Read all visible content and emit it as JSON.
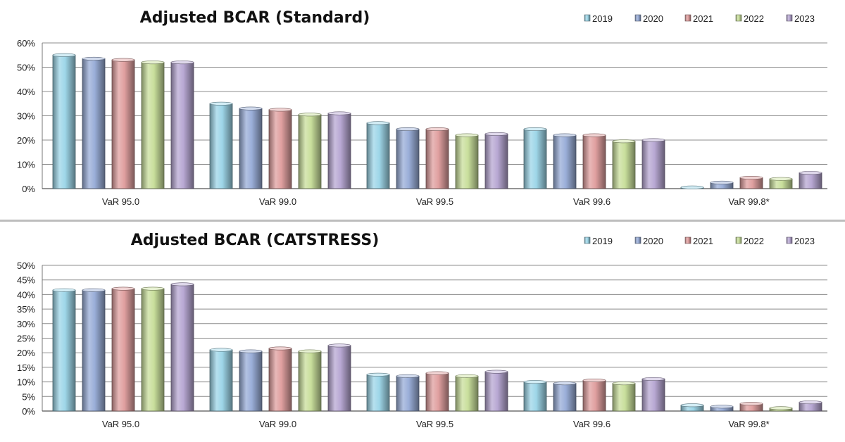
{
  "colors": {
    "2019": "#9ed6e8",
    "2020": "#9aaed8",
    "2021": "#e0a0a0",
    "2022": "#c9df9c",
    "2023": "#b8a8d3"
  },
  "chart_data": [
    {
      "type": "bar",
      "title": "Adjusted BCAR (Standard)",
      "categories": [
        "VaR 95.0",
        "VaR 99.0",
        "VaR 99.5",
        "VaR 99.6",
        "VaR 99.8*"
      ],
      "ylim": [
        0,
        60
      ],
      "yticks": [
        0,
        10,
        20,
        30,
        40,
        50,
        60
      ],
      "ytick_labels": [
        "0%",
        "10%",
        "20%",
        "30%",
        "40%",
        "50%",
        "60%"
      ],
      "legend_position": "top-right",
      "grid": true,
      "series": [
        {
          "name": "2019",
          "values": [
            55,
            35,
            27,
            24.5,
            0.5
          ]
        },
        {
          "name": "2020",
          "values": [
            53.5,
            33,
            24.5,
            22,
            2.5
          ]
        },
        {
          "name": "2021",
          "values": [
            53,
            32.5,
            24.5,
            22,
            4.5
          ]
        },
        {
          "name": "2022",
          "values": [
            52,
            30.5,
            22,
            19.5,
            4
          ]
        },
        {
          "name": "2023",
          "values": [
            52,
            31,
            22.5,
            20,
            6.5
          ]
        }
      ]
    },
    {
      "type": "bar",
      "title": "Adjusted BCAR (CATSTRESS)",
      "categories": [
        "VaR 95.0",
        "VaR 99.0",
        "VaR 99.5",
        "VaR 99.6",
        "VaR 99.8*"
      ],
      "ylim": [
        0,
        50
      ],
      "yticks": [
        0,
        5,
        10,
        15,
        20,
        25,
        30,
        35,
        40,
        45,
        50
      ],
      "ytick_labels": [
        "0%",
        "5%",
        "10%",
        "15%",
        "20%",
        "25%",
        "30%",
        "35%",
        "40%",
        "45%",
        "50%"
      ],
      "legend_position": "top-right",
      "grid": true,
      "series": [
        {
          "name": "2019",
          "values": [
            41.5,
            21,
            12.5,
            10,
            2
          ]
        },
        {
          "name": "2020",
          "values": [
            41.5,
            20.5,
            12,
            9.5,
            1.5
          ]
        },
        {
          "name": "2021",
          "values": [
            42,
            21.5,
            13,
            10.5,
            2.5
          ]
        },
        {
          "name": "2022",
          "values": [
            42,
            20.5,
            12,
            9.5,
            1
          ]
        },
        {
          "name": "2023",
          "values": [
            43.5,
            22.5,
            13.5,
            11,
            3
          ]
        }
      ]
    }
  ]
}
